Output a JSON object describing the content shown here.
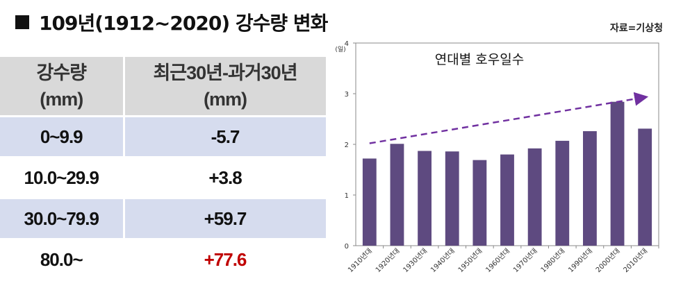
{
  "header": {
    "title": "109년(1912~2020) 강수량 변화",
    "source": "자료=기상청"
  },
  "table": {
    "headers": [
      [
        "강수량",
        "(mm)"
      ],
      [
        "최근30년-과거30년",
        "(mm)"
      ]
    ],
    "rows": [
      {
        "range": "0~9.9",
        "diff": "-5.7"
      },
      {
        "range": "10.0~29.9",
        "diff": "+3.8"
      },
      {
        "range": "30.0~79.9",
        "diff": "+59.7"
      },
      {
        "range": "80.0~",
        "diff": "+77.6"
      }
    ],
    "highlight_color": "#c00000"
  },
  "chart_data": {
    "type": "bar",
    "title": "연대별 호우일수",
    "ylabel": "(일)",
    "categories": [
      "1910년대",
      "1920년대",
      "1930년대",
      "1940년대",
      "1950년대",
      "1960년대",
      "1970년대",
      "1980년대",
      "1990년대",
      "2000년대",
      "2010년대"
    ],
    "values": [
      1.72,
      2.01,
      1.87,
      1.86,
      1.69,
      1.8,
      1.92,
      2.07,
      2.26,
      2.84,
      2.31
    ],
    "ylim": [
      0,
      4
    ],
    "yticks": [
      0,
      1,
      2,
      3,
      4
    ],
    "trend": {
      "from": 2.02,
      "to": 2.93
    },
    "bar_color": "#5e4a80",
    "trend_color": "#7030a0",
    "grid": false
  }
}
